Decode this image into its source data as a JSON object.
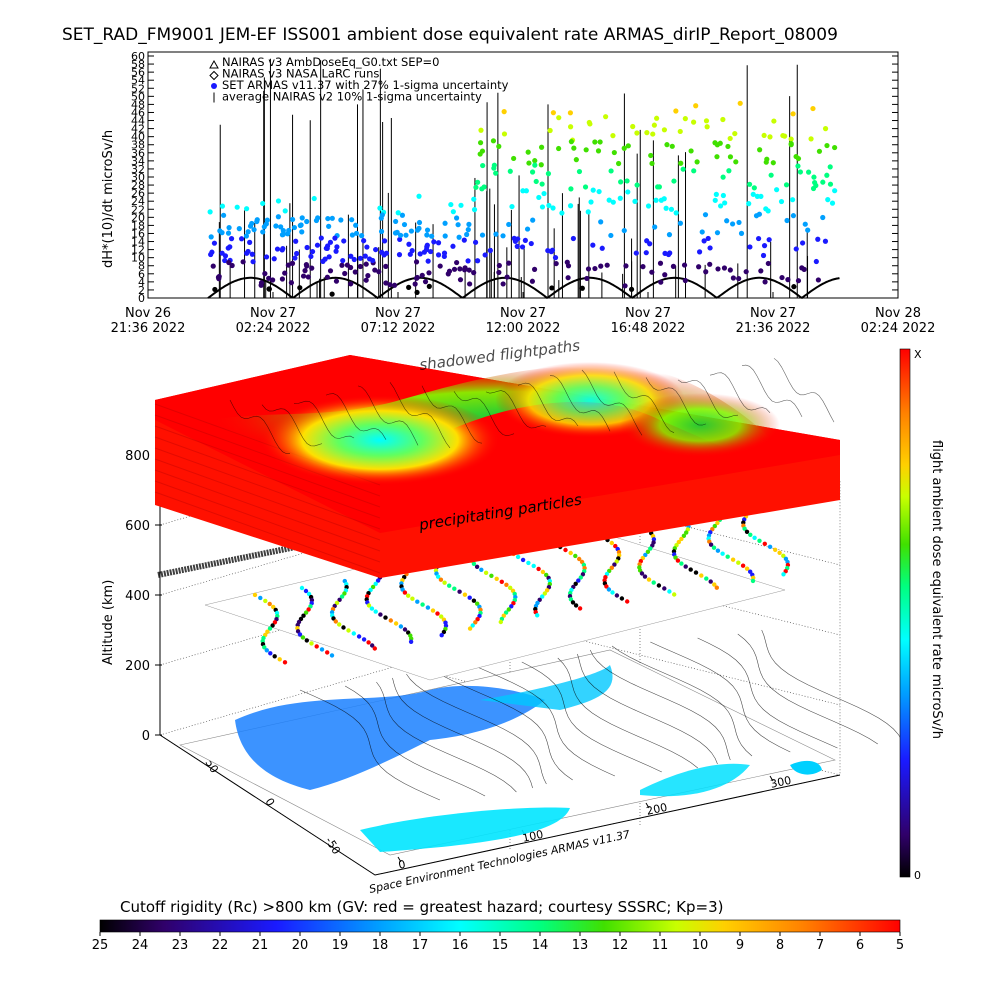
{
  "title": "SET_RAD_FM9001  JEM-EF ISS001 ambient dose equivalent rate ARMAS_dirIP_Report_08009",
  "colors": {
    "jet": [
      "#000000",
      "#30006a",
      "#1a1aff",
      "#00a0ff",
      "#00ffff",
      "#00ff80",
      "#40e000",
      "#c8ff00",
      "#ffd000",
      "#ff8000",
      "#ff0000"
    ],
    "nairas_v3": "#000000"
  },
  "chart_data": {
    "type": "scatter",
    "top_panel": {
      "ylabel": "dH*(10)/dt microSv/h",
      "ylim": [
        0,
        60
      ],
      "yticks": [
        "0",
        "2",
        "4",
        "6",
        "8",
        "10",
        "12",
        "14",
        "16",
        "18",
        "20",
        "22",
        "24",
        "26",
        "28",
        "30",
        "32",
        "34",
        "36",
        "38",
        "40",
        "42",
        "44",
        "46",
        "48",
        "50",
        "52",
        "54",
        "56",
        "58",
        "60"
      ],
      "xticks": [
        {
          "l1": "Nov 26",
          "l2": "21:36 2022"
        },
        {
          "l1": "Nov 27",
          "l2": "02:24 2022"
        },
        {
          "l1": "Nov 27",
          "l2": "07:12 2022"
        },
        {
          "l1": "Nov 27",
          "l2": "12:00 2022"
        },
        {
          "l1": "Nov 27",
          "l2": "16:48 2022"
        },
        {
          "l1": "Nov 27",
          "l2": "21:36 2022"
        },
        {
          "l1": "Nov 28",
          "l2": "02:24 2022"
        }
      ],
      "legend": [
        {
          "symbol": "triangle",
          "label": "NAIRAS v3 AmbDoseEq_G0.txt SEP=0"
        },
        {
          "symbol": "diamond",
          "label": "NAIRAS v3 NASA LaRC runs"
        },
        {
          "symbol": "dot",
          "label": "SET ARMAS v11.37 with 27% 1-sigma uncertainty"
        },
        {
          "symbol": "bar",
          "label": "average NAIRAS v2 10% 1-sigma uncertainty"
        }
      ],
      "nairas_orbit_peak_approx": 5
    },
    "bottom_panel": {
      "ylabel": "Altitude (km)",
      "zticks": [
        "0",
        "200",
        "400",
        "600",
        "800"
      ],
      "lat_ticks": [
        "50",
        "0",
        "-50"
      ],
      "lon_ticks": [
        "0",
        "100",
        "200",
        "300"
      ],
      "layer_labels": [
        "shadowed flightpaths",
        "precipitating particles"
      ],
      "credit": "Space Environment Technologies ARMAS v11.37"
    },
    "colorbar_right": {
      "label": "flight ambient dose equivalent rate microSv/h",
      "top_label": "X",
      "bottom_label": "0"
    },
    "colorbar_bottom": {
      "label": "Cutoff rigidity (Rc) >800 km (GV: red = greatest hazard; courtesy SSSRC; Kp=3)",
      "ticks": [
        "25",
        "24",
        "23",
        "22",
        "21",
        "20",
        "19",
        "18",
        "17",
        "16",
        "15",
        "14",
        "13",
        "12",
        "11",
        "10",
        "9",
        "8",
        "7",
        "6",
        "5"
      ]
    }
  }
}
